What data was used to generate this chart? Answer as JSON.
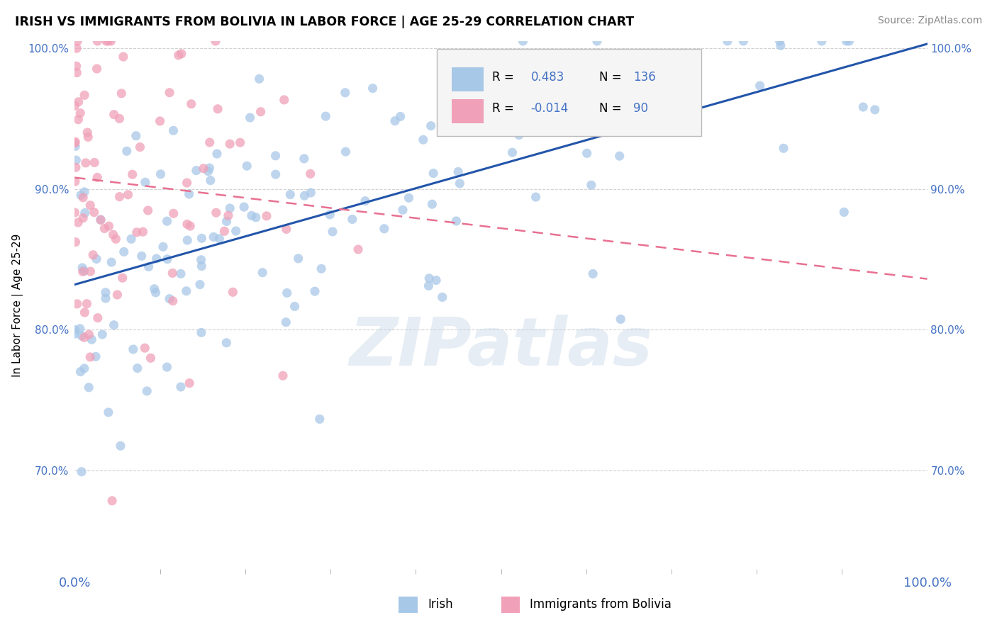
{
  "title": "IRISH VS IMMIGRANTS FROM BOLIVIA IN LABOR FORCE | AGE 25-29 CORRELATION CHART",
  "source": "Source: ZipAtlas.com",
  "ylabel": "In Labor Force | Age 25-29",
  "legend_blue_r": "0.483",
  "legend_blue_n": "136",
  "legend_pink_r": "-0.014",
  "legend_pink_n": "90",
  "legend_label_blue": "Irish",
  "legend_label_pink": "Immigrants from Bolivia",
  "blue_color": "#a8c8e8",
  "pink_color": "#f0a0b8",
  "trend_blue_color": "#2255aa",
  "trend_pink_color": "#e87090",
  "watermark": "ZIPatlas",
  "bg_color": "#ffffff",
  "grid_color": "#cccccc",
  "tick_color": "#4472c4",
  "ylim_low": 0.63,
  "ylim_high": 1.005,
  "xlim_low": 0,
  "xlim_high": 100,
  "yticks": [
    0.7,
    0.8,
    0.9,
    1.0
  ],
  "ytick_labels": [
    "70.0%",
    "80.0%",
    "90.0%",
    "100.0%"
  ],
  "xtick_labels_left": "0.0%",
  "xtick_labels_right": "100.0%",
  "blue_trend_x0": 0,
  "blue_trend_y0": 0.832,
  "blue_trend_x1": 100,
  "blue_trend_y1": 1.003,
  "pink_trend_x0": 0,
  "pink_trend_y0": 0.908,
  "pink_trend_x1": 100,
  "pink_trend_y1": 0.836
}
